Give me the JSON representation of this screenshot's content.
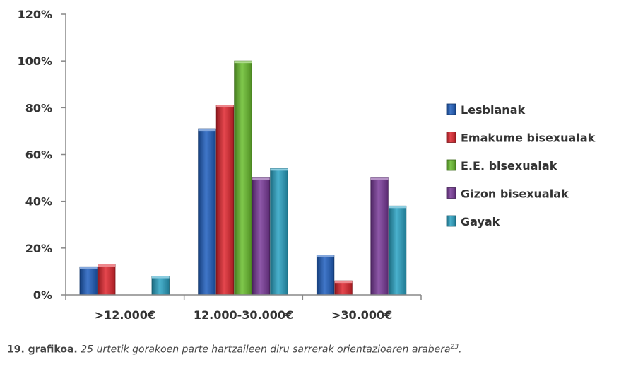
{
  "chart_data": {
    "type": "bar",
    "title": "",
    "xlabel": "",
    "ylabel": "",
    "categories": [
      ">12.000€",
      "12.000-30.000€",
      ">30.000€"
    ],
    "ylim": [
      0,
      120
    ],
    "yticks": [
      "0%",
      "20%",
      "40%",
      "60%",
      "80%",
      "100%",
      "120%"
    ],
    "ytick_values": [
      0,
      20,
      40,
      60,
      80,
      100,
      120
    ],
    "grid": false,
    "legend_position": "right",
    "series": [
      {
        "name": "Lesbianak",
        "color": "#1f5fbf",
        "values": [
          12,
          71,
          17
        ]
      },
      {
        "name": "Emakume bisexualak",
        "color": "#e0262f",
        "values": [
          13,
          81,
          6
        ]
      },
      {
        "name": "E.E. bisexualak",
        "color": "#6abf2e",
        "values": [
          0,
          100,
          0
        ]
      },
      {
        "name": "Gizon bisexualak",
        "color": "#7a3a9a",
        "values": [
          0,
          50,
          50
        ]
      },
      {
        "name": "Gayak",
        "color": "#2aa3c4",
        "values": [
          8,
          54,
          38
        ]
      }
    ]
  },
  "caption": {
    "lead": "19. grafikoa.",
    "text": "25 urtetik gorakoen parte hartzaileen diru sarrerak orientazioaren arabera",
    "footnote": "23",
    "end": "."
  }
}
